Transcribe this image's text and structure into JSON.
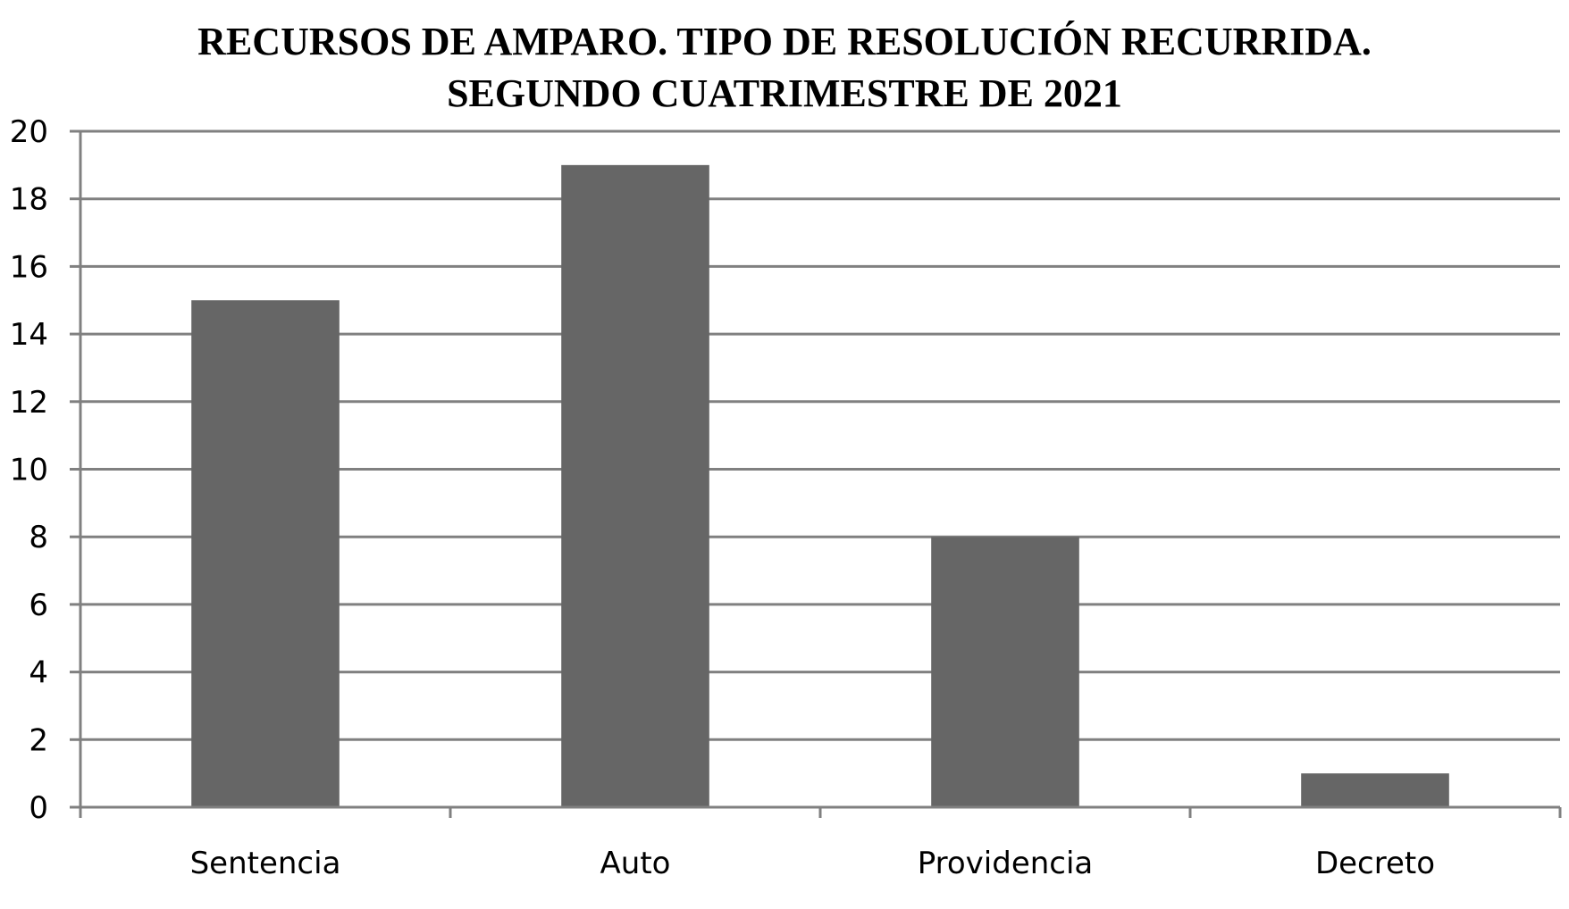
{
  "chart_data": {
    "type": "bar",
    "title_line1": "RECURSOS DE AMPARO. TIPO DE RESOLUCIÓN RECURRIDA.",
    "title_line2": "SEGUNDO CUATRIMESTRE DE 2021",
    "categories": [
      "Sentencia",
      "Auto",
      "Providencia",
      "Decreto"
    ],
    "values": [
      15,
      19,
      8,
      1
    ],
    "ylim": [
      0,
      20
    ],
    "yticks": [
      0,
      2,
      4,
      6,
      8,
      10,
      12,
      14,
      16,
      18,
      20
    ],
    "grid": true,
    "legend": "none",
    "bar_color": "#666666",
    "grid_color": "#808080"
  }
}
